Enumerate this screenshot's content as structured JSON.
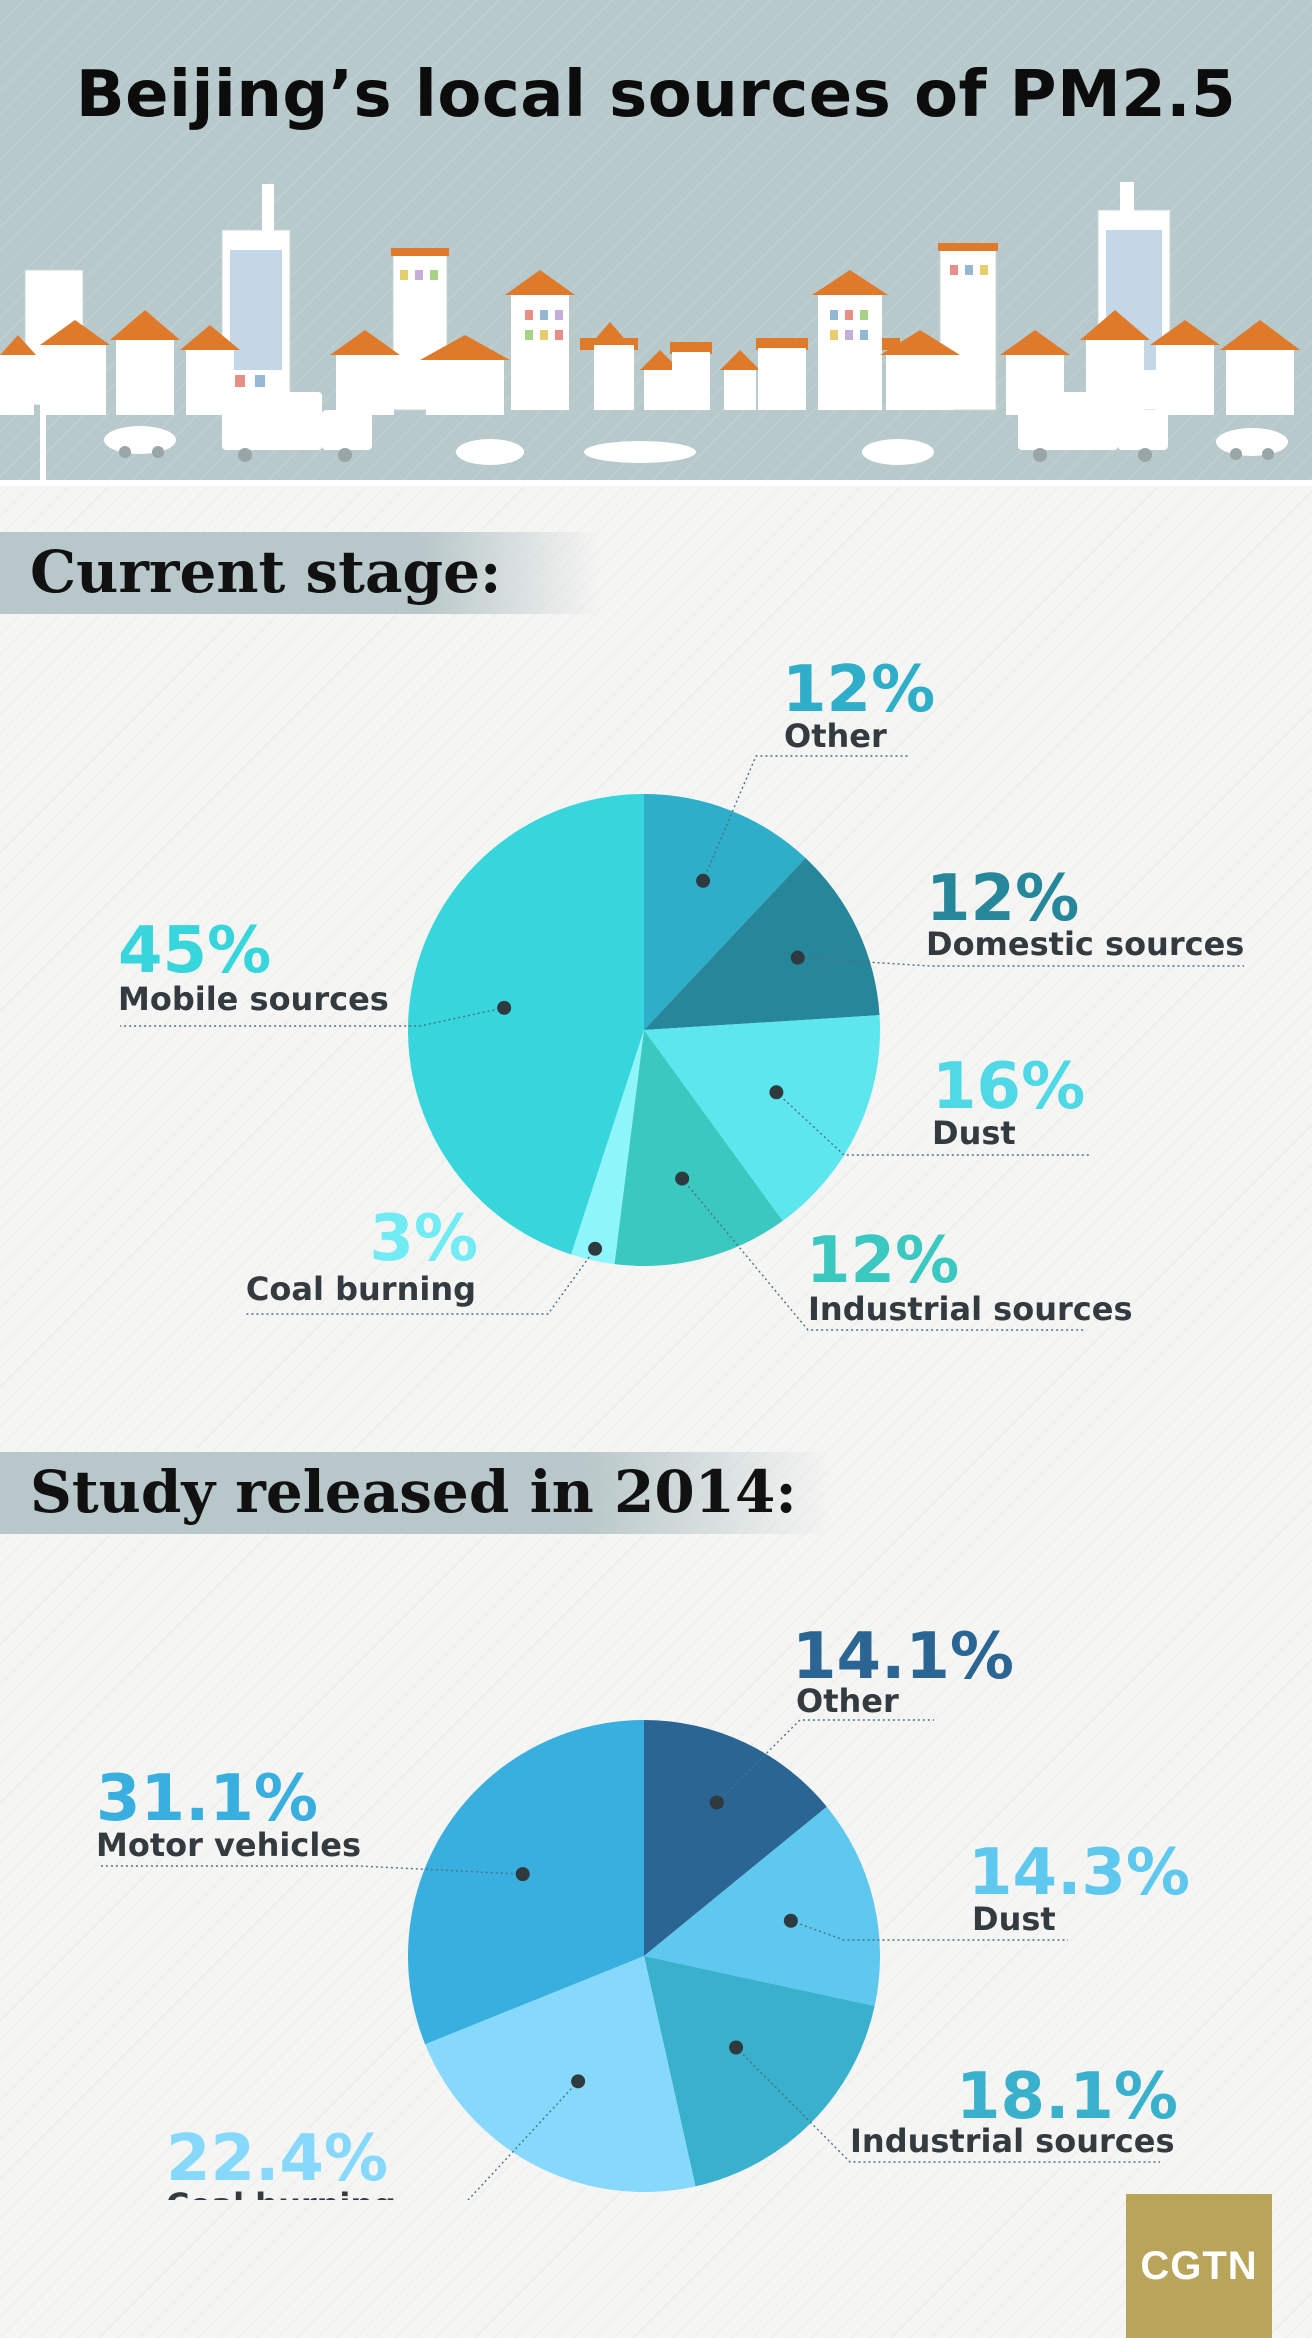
{
  "title": "Beijing’s local sources of PM2.5",
  "logo_text": "CGTN",
  "colors": {
    "header_bg": "#b7c9cb",
    "roof": "#e07a2b",
    "banner": "#b8c7c9"
  },
  "chart_data": [
    {
      "type": "pie",
      "title": "Current stage:",
      "start_angle_deg": 0,
      "direction": "clockwise",
      "slices": [
        {
          "label": "Other",
          "value": 12,
          "text": "12%",
          "color": "#2eaec9",
          "text_color": "#2eaec9"
        },
        {
          "label": "Domestic sources",
          "value": 12,
          "text": "12%",
          "color": "#27879a",
          "text_color": "#27879a"
        },
        {
          "label": "Dust",
          "value": 16,
          "text": "16%",
          "color": "#5ee6ef",
          "text_color": "#4fd8e6"
        },
        {
          "label": "Industrial sources",
          "value": 12,
          "text": "12%",
          "color": "#3bc8c0",
          "text_color": "#3bc8c0"
        },
        {
          "label": "Coal burning",
          "value": 3,
          "text": "3%",
          "color": "#8ef6fb",
          "text_color": "#72ecf4"
        },
        {
          "label": "Mobile sources",
          "value": 45,
          "text": "45%",
          "color": "#37d5dc",
          "text_color": "#37d5dc"
        }
      ]
    },
    {
      "type": "pie",
      "title": "Study released in 2014:",
      "start_angle_deg": 0,
      "direction": "clockwise",
      "slices": [
        {
          "label": "Other",
          "value": 14.1,
          "text": "14.1%",
          "color": "#2a6593",
          "text_color": "#2a6593"
        },
        {
          "label": "Dust",
          "value": 14.3,
          "text": "14.3%",
          "color": "#5ec8ee",
          "text_color": "#5ec8ee"
        },
        {
          "label": "Industrial sources",
          "value": 18.1,
          "text": "18.1%",
          "color": "#39b1cc",
          "text_color": "#39b1cc"
        },
        {
          "label": "Coal burning",
          "value": 22.4,
          "text": "22.4%",
          "color": "#86d9fb",
          "text_color": "#86d9fb"
        },
        {
          "label": "Motor vehicles",
          "value": 31.1,
          "text": "31.1%",
          "color": "#38afdf",
          "text_color": "#38afdf"
        }
      ]
    }
  ]
}
